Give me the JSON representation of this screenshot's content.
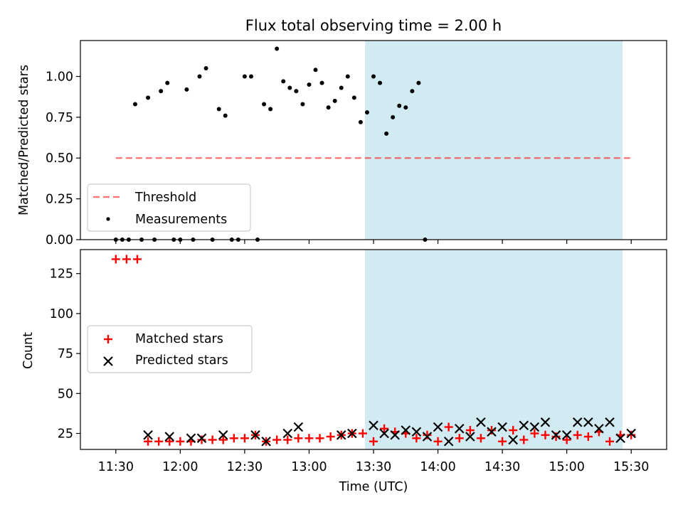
{
  "chart_data": [
    {
      "type": "scatter",
      "title": "Flux total observing time = 2.00 h",
      "xlabel": "",
      "ylabel": "Matched/Predicted stars",
      "ylim": [
        0.0,
        1.22
      ],
      "yticks": [
        "0.00",
        "0.25",
        "0.50",
        "0.75",
        "1.00"
      ],
      "highlight_span": {
        "start": "13:26",
        "end": "15:26",
        "color": "#add8e6"
      },
      "threshold": {
        "name": "Threshold",
        "value": 0.5,
        "x_start": "11:30",
        "x_end": "15:30",
        "color": "#ff0000"
      },
      "legend": {
        "position": "lower-left",
        "entries": [
          "Threshold",
          "Measurements"
        ]
      },
      "series": [
        {
          "name": "Measurements",
          "color": "#000000",
          "points": [
            [
              "11:30",
              0.0
            ],
            [
              "11:33",
              0.0
            ],
            [
              "11:36",
              0.0
            ],
            [
              "11:39",
              0.83
            ],
            [
              "11:42",
              0.0
            ],
            [
              "11:45",
              0.87
            ],
            [
              "11:48",
              0.0
            ],
            [
              "11:51",
              0.91
            ],
            [
              "11:54",
              0.96
            ],
            [
              "11:57",
              0.0
            ],
            [
              "12:00",
              0.0
            ],
            [
              "12:03",
              0.92
            ],
            [
              "12:06",
              0.0
            ],
            [
              "12:09",
              1.0
            ],
            [
              "12:12",
              1.05
            ],
            [
              "12:15",
              0.0
            ],
            [
              "12:18",
              0.8
            ],
            [
              "12:21",
              0.76
            ],
            [
              "12:24",
              0.0
            ],
            [
              "12:27",
              0.0
            ],
            [
              "12:30",
              1.0
            ],
            [
              "12:33",
              1.0
            ],
            [
              "12:36",
              0.0
            ],
            [
              "12:39",
              0.83
            ],
            [
              "12:42",
              0.8
            ],
            [
              "12:45",
              1.17
            ],
            [
              "12:48",
              0.97
            ],
            [
              "12:51",
              0.93
            ],
            [
              "12:54",
              0.91
            ],
            [
              "12:57",
              0.83
            ],
            [
              "13:00",
              0.95
            ],
            [
              "13:03",
              1.04
            ],
            [
              "13:06",
              0.96
            ],
            [
              "13:09",
              0.81
            ],
            [
              "13:12",
              0.85
            ],
            [
              "13:15",
              0.93
            ],
            [
              "13:18",
              1.0
            ],
            [
              "13:21",
              0.87
            ],
            [
              "13:24",
              0.72
            ],
            [
              "13:27",
              0.78
            ],
            [
              "13:30",
              1.0
            ],
            [
              "13:33",
              0.96
            ],
            [
              "13:36",
              0.65
            ],
            [
              "13:39",
              0.75
            ],
            [
              "13:42",
              0.82
            ],
            [
              "13:45",
              0.81
            ],
            [
              "13:48",
              0.91
            ],
            [
              "13:51",
              0.96
            ],
            [
              "13:54",
              0.0
            ]
          ]
        }
      ]
    },
    {
      "type": "scatter",
      "title": "",
      "xlabel": "Time (UTC)",
      "ylabel": "Count",
      "ylim": [
        15,
        140
      ],
      "yticks": [
        "25",
        "50",
        "75",
        "100",
        "125"
      ],
      "xticks": [
        "11:30",
        "12:00",
        "12:30",
        "13:00",
        "13:30",
        "14:00",
        "14:30",
        "15:00",
        "15:30"
      ],
      "highlight_span": {
        "start": "13:26",
        "end": "15:26",
        "color": "#add8e6"
      },
      "legend": {
        "position": "center-left",
        "entries": [
          "Matched stars",
          "Predicted stars"
        ]
      },
      "series": [
        {
          "name": "Matched stars",
          "color": "#ff0000",
          "marker": "plus",
          "points": [
            [
              "11:30",
              134
            ],
            [
              "11:35",
              134
            ],
            [
              "11:40",
              134
            ],
            [
              "11:45",
              20
            ],
            [
              "11:50",
              20
            ],
            [
              "11:55",
              20
            ],
            [
              "12:00",
              20
            ],
            [
              "12:05",
              20
            ],
            [
              "12:10",
              21
            ],
            [
              "12:15",
              21
            ],
            [
              "12:20",
              21
            ],
            [
              "12:25",
              22
            ],
            [
              "12:30",
              22
            ],
            [
              "12:35",
              24
            ],
            [
              "12:40",
              20
            ],
            [
              "12:45",
              21
            ],
            [
              "12:50",
              21
            ],
            [
              "12:55",
              22
            ],
            [
              "13:00",
              22
            ],
            [
              "13:05",
              22
            ],
            [
              "13:10",
              23
            ],
            [
              "13:15",
              24
            ],
            [
              "13:20",
              25
            ],
            [
              "13:25",
              25
            ],
            [
              "13:30",
              20
            ],
            [
              "13:35",
              28
            ],
            [
              "13:40",
              26
            ],
            [
              "13:45",
              25
            ],
            [
              "13:50",
              22
            ],
            [
              "13:55",
              24
            ],
            [
              "14:00",
              20
            ],
            [
              "14:05",
              29
            ],
            [
              "14:10",
              22
            ],
            [
              "14:15",
              27
            ],
            [
              "14:20",
              22
            ],
            [
              "14:25",
              27
            ],
            [
              "14:30",
              20
            ],
            [
              "14:35",
              27
            ],
            [
              "14:40",
              21
            ],
            [
              "14:45",
              25
            ],
            [
              "14:50",
              24
            ],
            [
              "14:55",
              23
            ],
            [
              "15:00",
              21
            ],
            [
              "15:05",
              24
            ],
            [
              "15:10",
              23
            ],
            [
              "15:15",
              26
            ],
            [
              "15:20",
              20
            ],
            [
              "15:25",
              24
            ],
            [
              "15:30",
              24
            ]
          ]
        },
        {
          "name": "Predicted stars",
          "color": "#000000",
          "marker": "x",
          "points": [
            [
              "11:45",
              24
            ],
            [
              "11:55",
              23
            ],
            [
              "12:05",
              22
            ],
            [
              "12:10",
              22
            ],
            [
              "12:20",
              24
            ],
            [
              "12:35",
              24
            ],
            [
              "12:40",
              20
            ],
            [
              "12:50",
              25
            ],
            [
              "12:55",
              29
            ],
            [
              "13:15",
              24
            ],
            [
              "13:20",
              25
            ],
            [
              "13:30",
              30
            ],
            [
              "13:35",
              25
            ],
            [
              "13:40",
              24
            ],
            [
              "13:45",
              27
            ],
            [
              "13:50",
              26
            ],
            [
              "13:55",
              23
            ],
            [
              "14:00",
              29
            ],
            [
              "14:05",
              20
            ],
            [
              "14:10",
              28
            ],
            [
              "14:15",
              23
            ],
            [
              "14:20",
              32
            ],
            [
              "14:25",
              26
            ],
            [
              "14:30",
              29
            ],
            [
              "14:35",
              21
            ],
            [
              "14:40",
              30
            ],
            [
              "14:45",
              29
            ],
            [
              "14:50",
              32
            ],
            [
              "14:55",
              24
            ],
            [
              "15:00",
              24
            ],
            [
              "15:05",
              32
            ],
            [
              "15:10",
              32
            ],
            [
              "15:15",
              28
            ],
            [
              "15:20",
              32
            ],
            [
              "15:25",
              22
            ],
            [
              "15:30",
              25
            ]
          ]
        }
      ]
    }
  ]
}
